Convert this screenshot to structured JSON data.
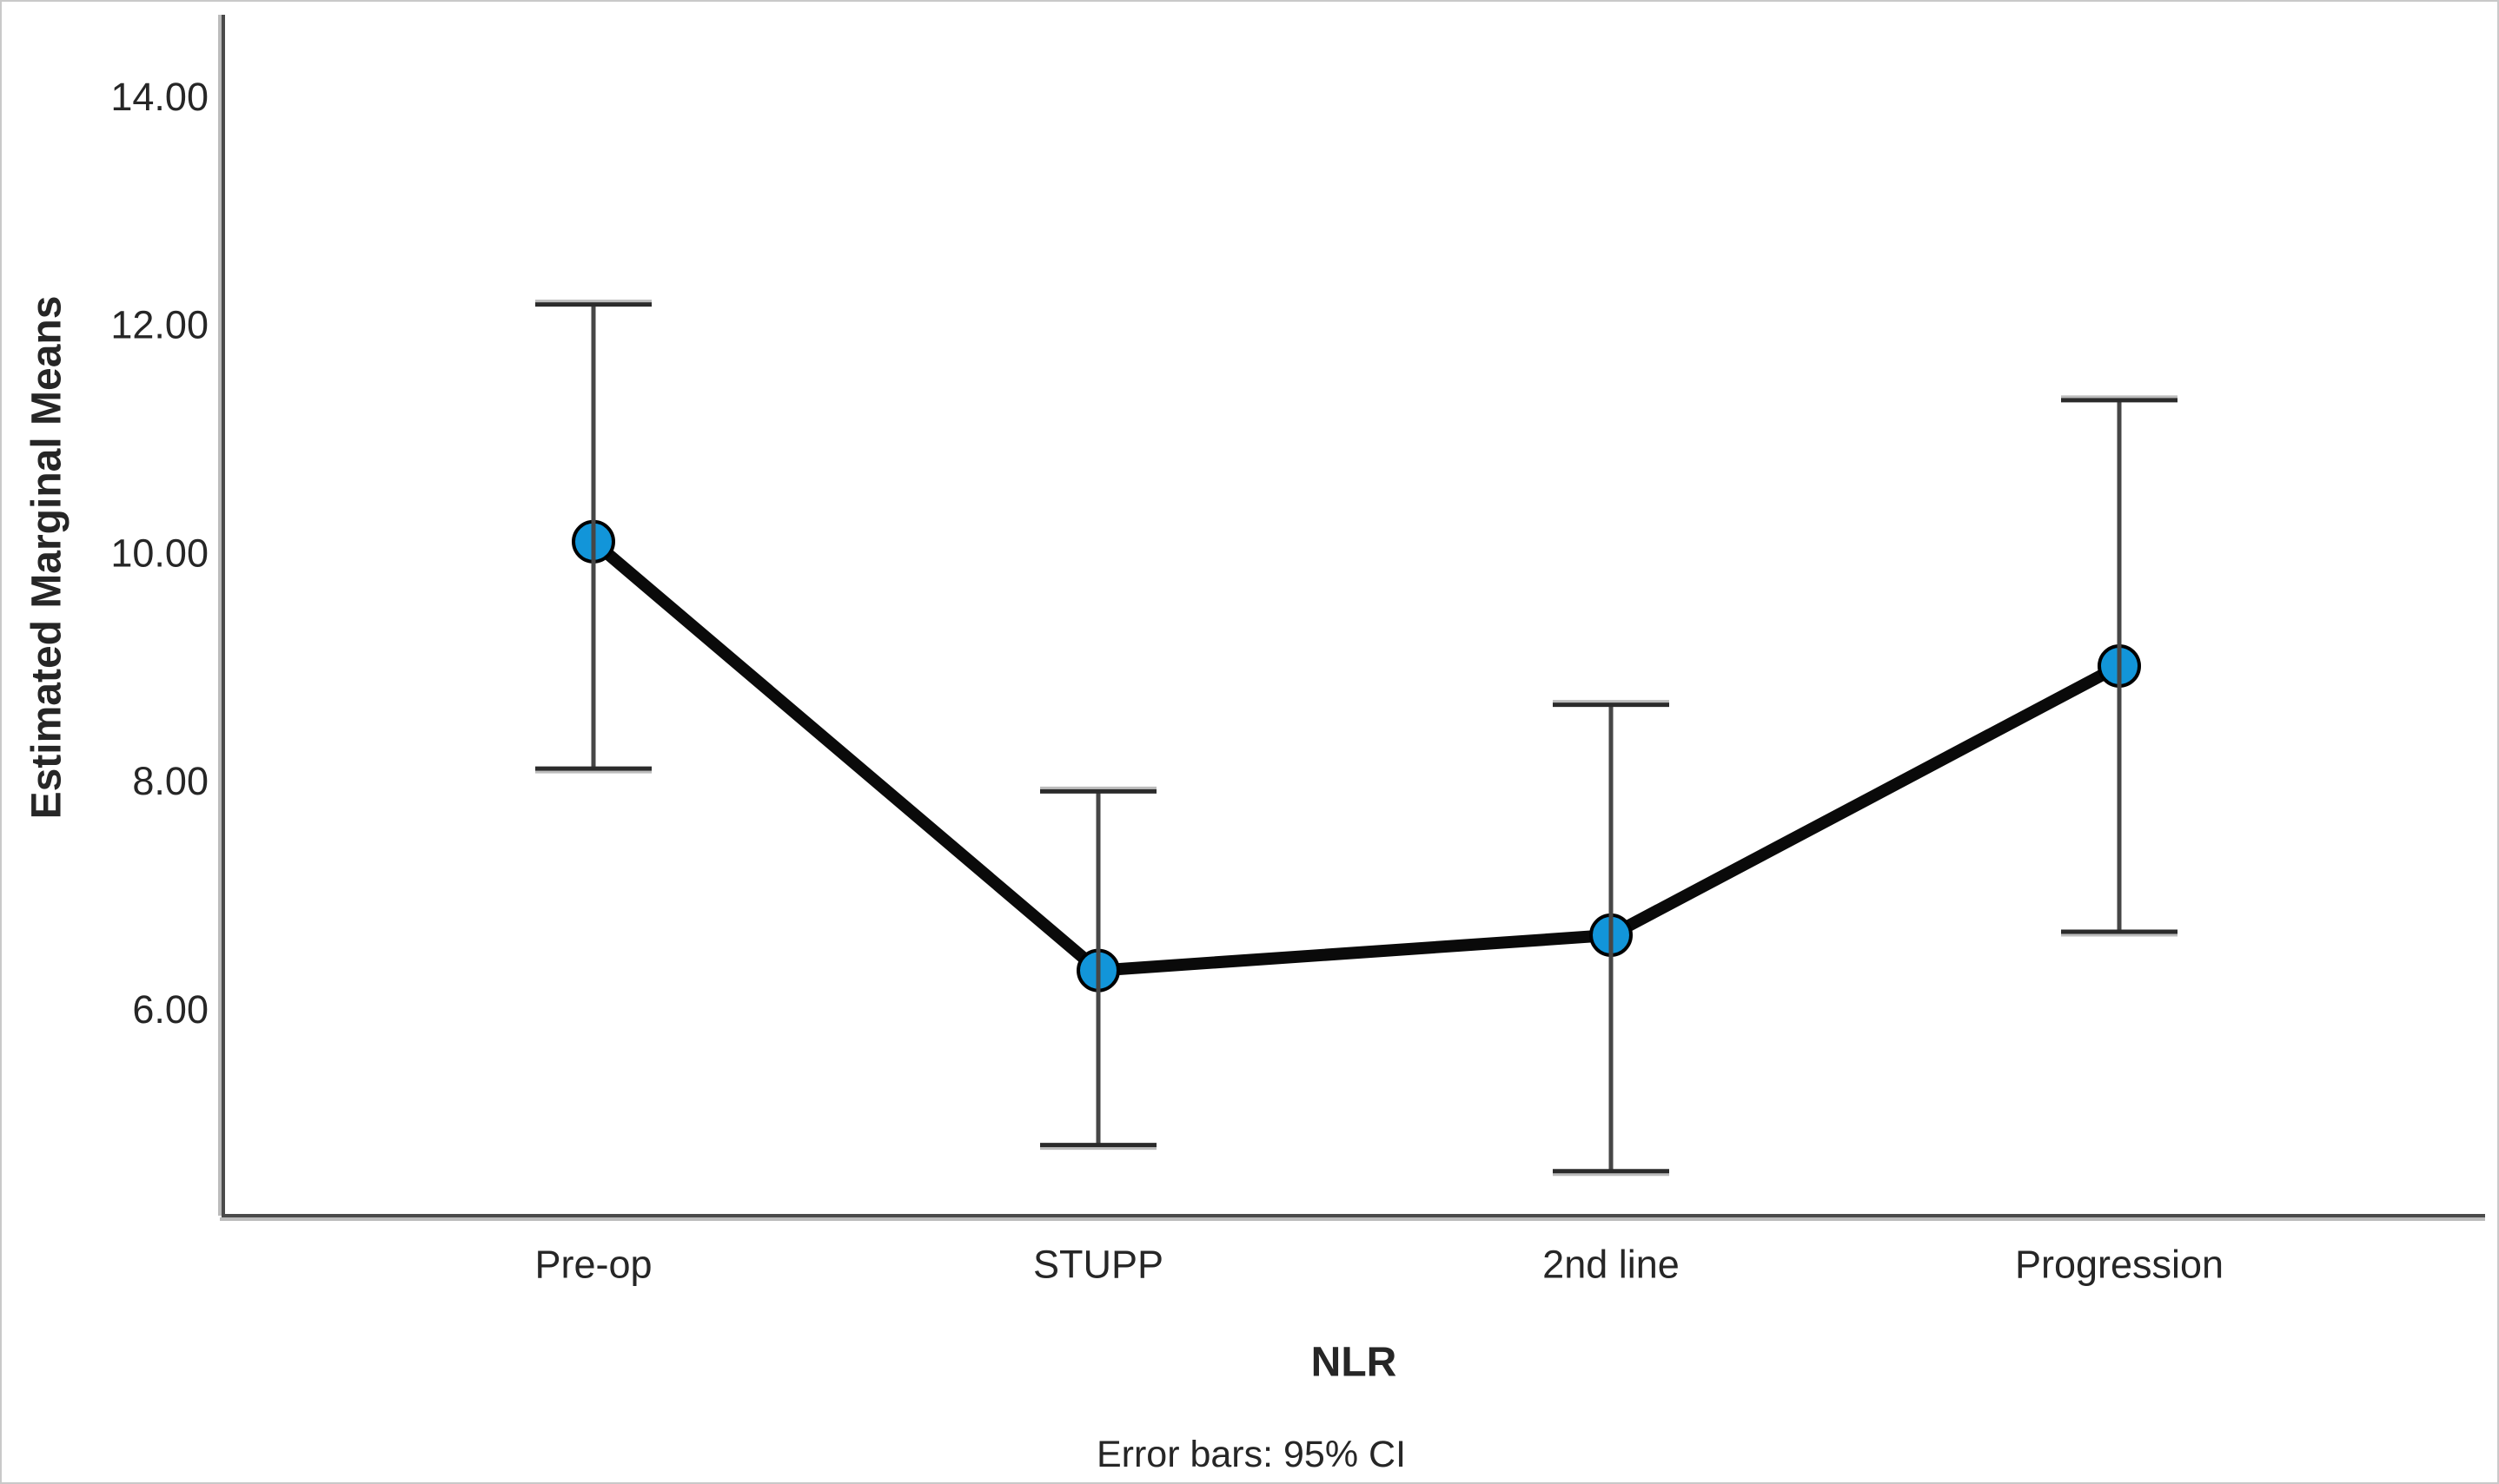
{
  "chart_data": {
    "type": "line",
    "title": "",
    "xlabel": "NLR",
    "ylabel": "Estimated Marginal Means",
    "caption": "Error bars: 95% CI",
    "categories": [
      "Pre-op",
      "STUPP",
      "2nd line",
      "Progression"
    ],
    "series": [
      {
        "name": "Estimated Marginal Means",
        "values": [
          10.1,
          6.34,
          6.65,
          9.01
        ],
        "ci_low": [
          8.11,
          4.81,
          4.58,
          6.68
        ],
        "ci_high": [
          12.18,
          7.91,
          8.67,
          11.34
        ]
      }
    ],
    "error_bar_type": "95% CI",
    "yticks": [
      6,
      8,
      10,
      12,
      14
    ],
    "ytick_labels": [
      "6.00",
      "8.00",
      "10.00",
      "12.00",
      "14.00"
    ],
    "ylim": [
      4.19,
      14.72
    ],
    "grid": false,
    "legend": null,
    "marker": "circle",
    "colors": {
      "marker_fill": "#1295d9",
      "marker_stroke": "#000000",
      "series_line": "#0a0a0a",
      "error_bar": "#464646",
      "error_bar_cap": "#2b2b2b",
      "axis": "#4a4a4a",
      "axis_shadow": "#bcbcbc",
      "text": "#262626",
      "background": "#ffffff"
    }
  }
}
